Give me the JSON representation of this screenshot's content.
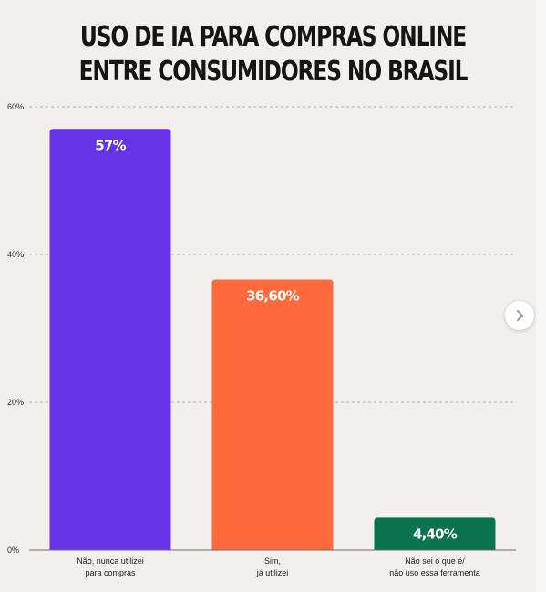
{
  "title_lines": [
    "USO DE IA PARA COMPRAS ONLINE",
    "ENTRE CONSUMIDORES NO BRASIL"
  ],
  "chart_data": {
    "type": "bar",
    "title": "USO DE IA PARA COMPRAS ONLINE ENTRE CONSUMIDORES NO BRASIL",
    "categories": [
      [
        "Não, nunca utilizei",
        "para compras"
      ],
      [
        "Sim,",
        "já utilizei"
      ],
      [
        "Não sei o que é/",
        "não uso essa ferramenta"
      ]
    ],
    "values": [
      57,
      36.6,
      4.4
    ],
    "data_labels": [
      "57%",
      "36,60%",
      "4,40%"
    ],
    "colors": [
      "#6633e6",
      "#ff6a3d",
      "#0a7450"
    ],
    "ylim": [
      0,
      60
    ],
    "yticks": [
      0,
      20,
      40,
      60
    ],
    "ytick_labels": [
      "0%",
      "20%",
      "40%",
      "60%"
    ],
    "grid": true,
    "xlabel": "",
    "ylabel": ""
  },
  "navigation": {
    "next_icon": "chevron-right-icon"
  }
}
